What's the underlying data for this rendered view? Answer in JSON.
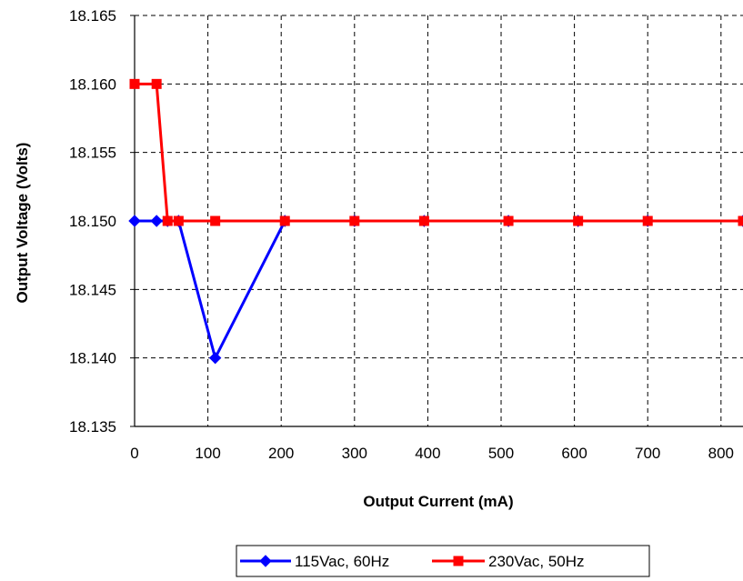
{
  "chart_data": {
    "type": "line",
    "title": "",
    "xlabel": "Output Current (mA)",
    "ylabel": "Output Voltage (Volts)",
    "xlim": [
      0,
      830
    ],
    "ylim": [
      18.135,
      18.165
    ],
    "x_ticks": [
      0,
      100,
      200,
      300,
      400,
      500,
      600,
      700,
      800
    ],
    "y_ticks": [
      18.135,
      18.14,
      18.145,
      18.15,
      18.155,
      18.16,
      18.165
    ],
    "x_tick_labels": [
      "0",
      "100",
      "200",
      "300",
      "400",
      "500",
      "600",
      "700",
      "800"
    ],
    "y_tick_labels": [
      "18.135",
      "18.140",
      "18.145",
      "18.150",
      "18.155",
      "18.160",
      "18.165"
    ],
    "grid": true,
    "legend_position": "bottom-center",
    "series": [
      {
        "name": "115Vac, 60Hz",
        "color": "#0000FF",
        "marker": "diamond",
        "x": [
          0,
          30,
          45,
          60,
          110,
          205,
          300,
          395,
          510,
          605,
          700,
          830
        ],
        "y": [
          18.15,
          18.15,
          18.15,
          18.15,
          18.14,
          18.15,
          18.15,
          18.15,
          18.15,
          18.15,
          18.15,
          18.15
        ]
      },
      {
        "name": "230Vac, 50Hz",
        "color": "#FF0000",
        "marker": "square",
        "x": [
          0,
          30,
          45,
          60,
          110,
          205,
          300,
          395,
          510,
          605,
          700,
          830
        ],
        "y": [
          18.16,
          18.16,
          18.15,
          18.15,
          18.15,
          18.15,
          18.15,
          18.15,
          18.15,
          18.15,
          18.15,
          18.15
        ]
      }
    ]
  }
}
